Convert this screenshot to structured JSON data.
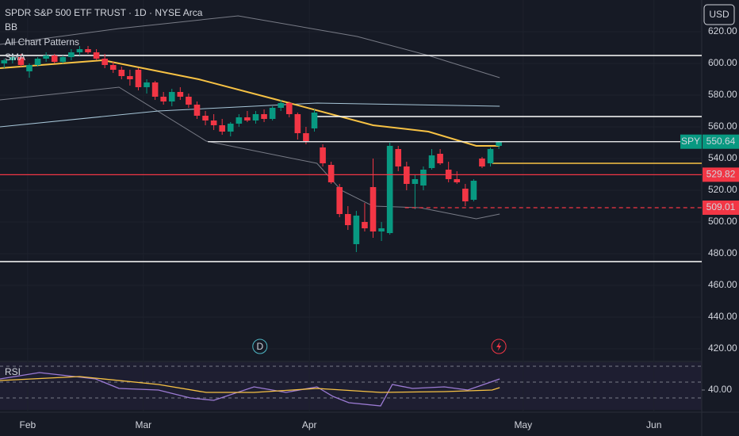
{
  "chart_data": {
    "type": "candlestick",
    "title": "SPDR S&P 500 ETF TRUST · 1D · NYSE Arca",
    "indicators": [
      "BB",
      "All Chart Patterns",
      "SMA"
    ],
    "currency": "USD",
    "up_color": "#089981",
    "down_color": "#f23645",
    "x": [
      0,
      1,
      2,
      3,
      4,
      5,
      6,
      7,
      8,
      9,
      10,
      11,
      12,
      13,
      14,
      15,
      16,
      17,
      18,
      19,
      20,
      21,
      22,
      23,
      24,
      25,
      26,
      27,
      28,
      29,
      30,
      31,
      32,
      33,
      34,
      35,
      36,
      37,
      38,
      39,
      40,
      41,
      42,
      43,
      44,
      45,
      46,
      47,
      48,
      49,
      50,
      51,
      52,
      53,
      54,
      55,
      56,
      57,
      58,
      59
    ],
    "open": [
      600,
      602,
      604,
      595,
      599,
      603,
      605,
      601,
      604,
      607,
      609,
      607,
      603,
      599,
      596,
      592,
      596,
      585,
      588,
      579,
      576,
      582,
      579,
      574,
      567,
      564,
      561,
      557,
      562,
      566,
      564,
      568,
      565,
      572,
      575,
      568,
      556,
      559,
      547,
      536,
      522,
      505,
      486,
      500,
      522,
      494,
      493,
      546,
      535,
      524,
      523,
      534,
      543,
      533,
      527,
      521,
      514,
      540,
      537,
      548
    ],
    "high": [
      603,
      606,
      606,
      600,
      604,
      607,
      606,
      605,
      609,
      611,
      611,
      609,
      606,
      601,
      598,
      596,
      597,
      590,
      589,
      582,
      584,
      585,
      581,
      576,
      570,
      568,
      565,
      563,
      568,
      570,
      570,
      571,
      573,
      577,
      576,
      569,
      560,
      571,
      549,
      538,
      524,
      510,
      507,
      512,
      540,
      500,
      550,
      548,
      538,
      530,
      535,
      546,
      546,
      538,
      532,
      524,
      527,
      541,
      547,
      551
    ],
    "low": [
      597,
      600,
      598,
      591,
      598,
      601,
      600,
      600,
      602,
      605,
      606,
      602,
      597,
      594,
      590,
      586,
      583,
      581,
      577,
      574,
      573,
      577,
      572,
      565,
      561,
      558,
      555,
      554,
      560,
      563,
      562,
      563,
      564,
      570,
      566,
      552,
      549,
      557,
      535,
      524,
      503,
      495,
      481,
      494,
      490,
      488,
      492,
      532,
      520,
      508,
      520,
      533,
      536,
      525,
      524,
      510,
      513,
      534,
      535,
      546
    ],
    "close": [
      602,
      604,
      599,
      599,
      603,
      605,
      601,
      604,
      607,
      609,
      607,
      603,
      599,
      596,
      592,
      590,
      585,
      588,
      579,
      576,
      582,
      579,
      574,
      567,
      564,
      561,
      557,
      562,
      566,
      564,
      568,
      565,
      572,
      575,
      568,
      556,
      551,
      569,
      537,
      525,
      505,
      498,
      504,
      496,
      494,
      496,
      548,
      535,
      524,
      527,
      533,
      542,
      537,
      527,
      525,
      513,
      526,
      535,
      546,
      550.64
    ],
    "overlays": [
      {
        "color": "#787b86",
        "x": [
          -0.5,
          13.7,
          27.9,
          42.1,
          50.6,
          59.1
        ],
        "values": [
          612,
          622,
          630,
          617,
          605,
          591
        ]
      },
      {
        "color": "#787b86",
        "x": [
          -0.5,
          13.7,
          24.1,
          37.3,
          40.2,
          44,
          49.6,
          56.3,
          59.1
        ],
        "values": [
          577,
          585,
          551,
          537,
          520,
          510,
          509,
          502,
          505
        ]
      },
      {
        "color": "#a7c6d8",
        "x": [
          -0.5,
          18.4,
          37.3,
          59.1
        ],
        "values": [
          560,
          570,
          575,
          573
        ]
      },
      {
        "color": "#f7c244",
        "x": [
          -0.5,
          11.8,
          23.2,
          32.6,
          44,
          50.6,
          56.3,
          59.1
        ],
        "values": [
          597,
          602,
          590,
          577,
          561,
          557,
          548,
          548
        ]
      }
    ],
    "levels": [
      {
        "value": 605,
        "color": "#ffffff",
        "from": -0.5
      },
      {
        "value": 475,
        "color": "#ffffff",
        "from": -0.5
      },
      {
        "value": 566.5,
        "color": "#ffffff",
        "from": 37.3
      },
      {
        "value": 537,
        "color": "#f7c244",
        "from": 58.2
      }
    ],
    "price_labels": [
      {
        "name": "SPY",
        "value": 550.64,
        "color": "#089981",
        "from": 24.3
      },
      {
        "value": 529.82,
        "color": "#f23645",
        "from": -0.5
      },
      {
        "value": 509.01,
        "color": "#f23645",
        "from": 47.8
      }
    ],
    "xlim": [
      -0.5,
      83.2
    ],
    "xticks": [
      {
        "value": 2.8,
        "label": "Feb"
      },
      {
        "value": 16.6,
        "label": "Mar"
      },
      {
        "value": 36.4,
        "label": "Apr"
      },
      {
        "value": 61.9,
        "label": "May"
      },
      {
        "value": 77.5,
        "label": "Jun"
      }
    ],
    "ylim": [
      412,
      640
    ],
    "yticks": [
      {
        "value": 420,
        "label": "420.00"
      },
      {
        "value": 440,
        "label": "440.00"
      },
      {
        "value": 460,
        "label": "460.00"
      },
      {
        "value": 480,
        "label": "480.00"
      },
      {
        "value": 500,
        "label": "500.00"
      },
      {
        "value": 520,
        "label": "520.00"
      },
      {
        "value": 540,
        "label": "540.00"
      },
      {
        "value": 560,
        "label": "560.00"
      },
      {
        "value": 580,
        "label": "580.00"
      },
      {
        "value": 600,
        "label": "600.00"
      },
      {
        "value": 620,
        "label": "620.00"
      }
    ],
    "event_labels": [
      {
        "label": "D",
        "x": 30.5
      },
      {
        "x": 59
      }
    ],
    "rsi": {
      "title": "RSI",
      "ylim": [
        17,
        77
      ],
      "yticks": [
        {
          "value": 40,
          "label": "40.00"
        }
      ],
      "bands": [
        70,
        50,
        30
      ],
      "series": [
        {
          "color": "#9c7bd4",
          "x": [
            -0.5,
            4.2,
            10.9,
            13.7,
            18.4,
            22.2,
            25.0,
            29.8,
            33.6,
            37.3,
            39.2,
            41.1,
            44.9,
            46.3,
            48.7,
            52.5,
            55.3,
            57.2,
            59.1
          ],
          "values": [
            54,
            62,
            54,
            42,
            40,
            30,
            27,
            44,
            37,
            44,
            32,
            24,
            20,
            47,
            42,
            44,
            40,
            47,
            54
          ]
        },
        {
          "color": "#f7c244",
          "x": [
            -0.5,
            9,
            18.4,
            24.1,
            29.8,
            37.3,
            44.9,
            52.5,
            58.2,
            59.1
          ],
          "values": [
            52,
            57,
            47,
            37,
            37,
            42,
            37,
            38,
            40,
            43
          ]
        }
      ]
    }
  }
}
